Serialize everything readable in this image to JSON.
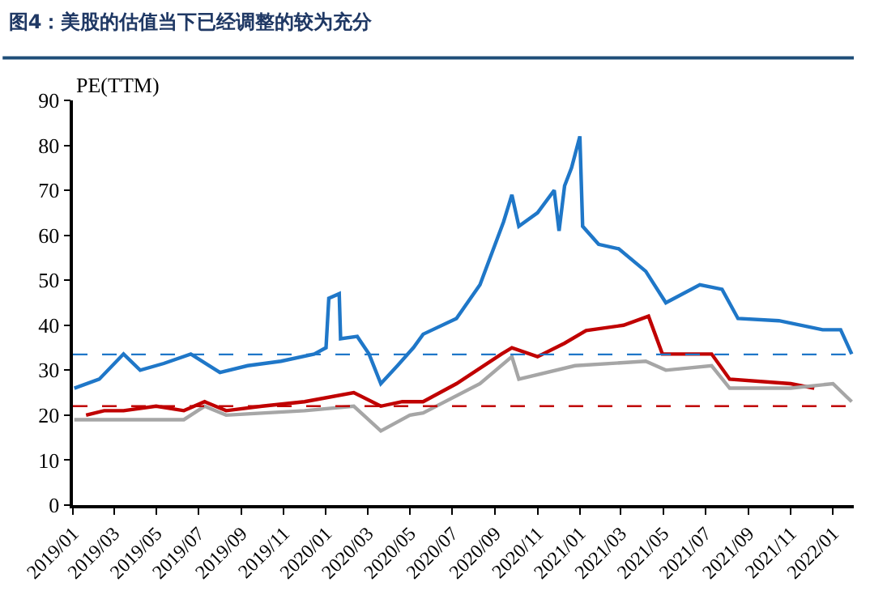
{
  "chart_data": {
    "type": "line",
    "title": "图4：美股的估值当下已经调整的较为充分",
    "ylabel": "PE(TTM)",
    "series": [
      {
        "color": "#c00000",
        "x": [
          "2019-01-20",
          "2019-02-15",
          "2019-03-15",
          "2019-05-01",
          "2019-06-10",
          "2019-07-10",
          "2019-08-10",
          "2019-10-01",
          "2019-12-01",
          "2020-02-10",
          "2020-03-20",
          "2020-04-20",
          "2020-05-20",
          "2020-07-07",
          "2020-09-10",
          "2020-09-25",
          "2020-11-01",
          "2020-12-10",
          "2021-01-10",
          "2021-03-05",
          "2021-04-10",
          "2021-04-30",
          "2021-07-10",
          "2021-08-05",
          "2021-11-01",
          "2021-12-05"
        ],
        "values": [
          20,
          21,
          21,
          22,
          21,
          23,
          21,
          22,
          23,
          25,
          22,
          23,
          23,
          27,
          33.6,
          35,
          33,
          36,
          38.8,
          40,
          42,
          33.6,
          33.6,
          28,
          27,
          26
        ]
      },
      {
        "color": "#1f77c8",
        "x": [
          "2019-01-03",
          "2019-02-08",
          "2019-03-15",
          "2019-04-08",
          "2019-05-12",
          "2019-06-20",
          "2019-08-01",
          "2019-09-10",
          "2019-10-28",
          "2019-12-15",
          "2020-01-01",
          "2020-01-05",
          "2020-01-20",
          "2020-01-22",
          "2020-02-15",
          "2020-03-03",
          "2020-03-20",
          "2020-04-13",
          "2020-05-06",
          "2020-05-20",
          "2020-07-07",
          "2020-08-10",
          "2020-09-13",
          "2020-09-25",
          "2020-10-05",
          "2020-11-01",
          "2020-11-25",
          "2020-12-02",
          "2020-12-10",
          "2020-12-20",
          "2021-01-01",
          "2021-01-05",
          "2021-01-28",
          "2021-02-26",
          "2021-04-06",
          "2021-05-05",
          "2021-06-23",
          "2021-07-25",
          "2021-08-17",
          "2021-10-15",
          "2021-12-17",
          "2022-01-12",
          "2022-01-28"
        ],
        "values": [
          26,
          28,
          33.6,
          30,
          31.5,
          33.6,
          29.5,
          31,
          32,
          33.6,
          35,
          46,
          47,
          37,
          37.5,
          33.6,
          27,
          31,
          35,
          38,
          41.5,
          49,
          63,
          69,
          62,
          65,
          70,
          61,
          71,
          75,
          82,
          62,
          58,
          57,
          52,
          45,
          49,
          48,
          41.5,
          41,
          39,
          39,
          33.6
        ]
      },
      {
        "color": "#a6a6a6",
        "x": [
          "2019-01-03",
          "2019-03-01",
          "2019-06-10",
          "2019-07-10",
          "2019-08-10",
          "2019-12-01",
          "2020-02-10",
          "2020-03-20",
          "2020-05-01",
          "2020-05-20",
          "2020-08-10",
          "2020-09-25",
          "2020-10-05",
          "2020-12-25",
          "2021-04-06",
          "2021-05-05",
          "2021-07-10",
          "2021-08-05",
          "2021-11-01",
          "2022-01-01",
          "2022-01-28"
        ],
        "values": [
          19,
          19,
          19,
          22,
          20,
          21,
          22,
          16.5,
          20,
          20.5,
          27,
          33,
          28,
          31,
          32,
          30,
          31,
          26,
          26,
          27,
          23
        ]
      }
    ],
    "ref_lines": [
      {
        "axis": "y",
        "value": 33.5,
        "color": "#1f77c8",
        "line_style": "dashed"
      },
      {
        "axis": "y",
        "value": 22,
        "color": "#c00000",
        "line_style": "dashed"
      }
    ],
    "xlim": [
      "2019-01-01",
      "2022-01-31"
    ],
    "xticks": [
      {
        "value": "2019-01",
        "label": "2019/01"
      },
      {
        "value": "2019-03",
        "label": "2019/03"
      },
      {
        "value": "2019-05",
        "label": "2019/05"
      },
      {
        "value": "2019-07",
        "label": "2019/07"
      },
      {
        "value": "2019-09",
        "label": "2019/09"
      },
      {
        "value": "2019-11",
        "label": "2019/11"
      },
      {
        "value": "2020-01",
        "label": "2020/01"
      },
      {
        "value": "2020-03",
        "label": "2020/03"
      },
      {
        "value": "2020-05",
        "label": "2020/05"
      },
      {
        "value": "2020-07",
        "label": "2020/07"
      },
      {
        "value": "2020-09",
        "label": "2020/09"
      },
      {
        "value": "2020-11",
        "label": "2020/11"
      },
      {
        "value": "2021-01",
        "label": "2021/01"
      },
      {
        "value": "2021-03",
        "label": "2021/03"
      },
      {
        "value": "2021-05",
        "label": "2021/05"
      },
      {
        "value": "2021-07",
        "label": "2021/07"
      },
      {
        "value": "2021-09",
        "label": "2021/09"
      },
      {
        "value": "2021-11",
        "label": "2021/11"
      },
      {
        "value": "2022-01",
        "label": "2022/01"
      }
    ],
    "ylim": [
      0,
      90
    ],
    "yticks": [
      0,
      10,
      20,
      30,
      40,
      50,
      60,
      70,
      80,
      90
    ],
    "marker": "none",
    "line_style": "solid"
  }
}
